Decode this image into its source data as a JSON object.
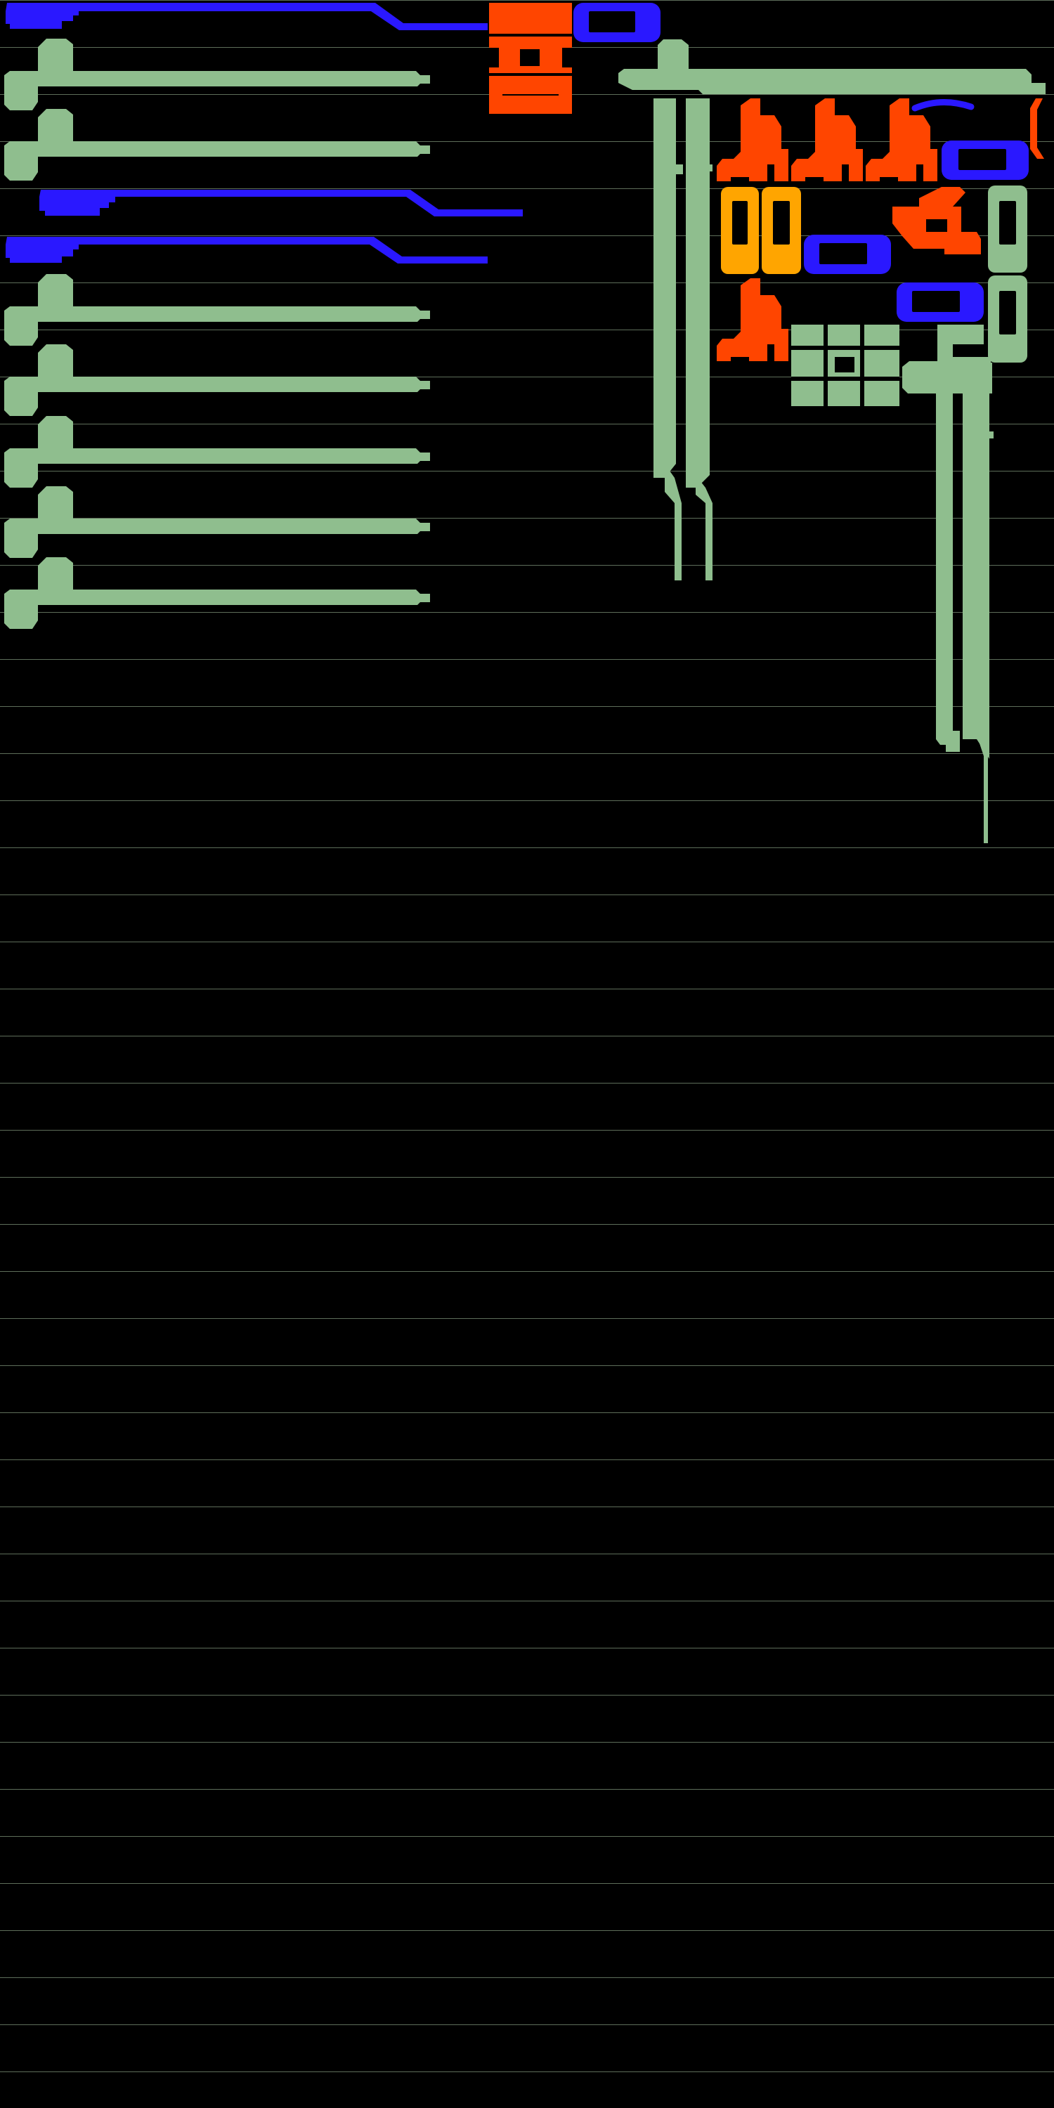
{
  "page": {
    "title": ""
  },
  "palette": {
    "background": "#000000",
    "rule": "#5e6e5a",
    "blue": "#2a18ff",
    "green": "#8fbe8e",
    "red_orange": "#ff4500",
    "amber": "#ffa500"
  }
}
